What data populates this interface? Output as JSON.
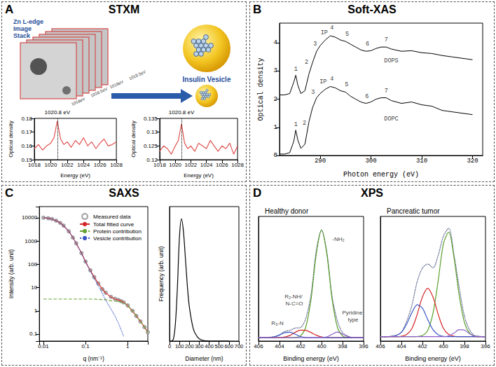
{
  "panels": [
    {
      "letter": "A",
      "title": "STXM",
      "diagram": {
        "stack_label": [
          "Zn L-edge",
          "Image",
          "Stack"
        ],
        "energies": [
          "1018eV",
          "1018.5eV",
          "1019eV",
          "1019.5eV"
        ],
        "vesicle_label": "Insulin Vesicle"
      }
    },
    {
      "letter": "B",
      "title": "Soft-XAS"
    },
    {
      "letter": "C",
      "title": "SAXS"
    },
    {
      "letter": "D",
      "title": "XPS"
    }
  ],
  "chart_data": [
    {
      "panel": "A",
      "type": "line",
      "x": [
        1018,
        1018.5,
        1019,
        1019.5,
        1020,
        1020.4,
        1020.8,
        1021.2,
        1021.6,
        1022,
        1022.5,
        1023,
        1023.5,
        1024,
        1024.5,
        1025,
        1025.5,
        1026,
        1026.5,
        1027,
        1027.5,
        1028
      ],
      "values": [
        0.158,
        0.161,
        0.157,
        0.16,
        0.162,
        0.166,
        0.178,
        0.165,
        0.161,
        0.163,
        0.159,
        0.164,
        0.161,
        0.166,
        0.16,
        0.163,
        0.158,
        0.162,
        0.165,
        0.16,
        0.161,
        0.163
      ],
      "color": "#e0524f",
      "xlabel": "Energy (eV)",
      "ylabel": "Optical density",
      "xlim": [
        1018,
        1028
      ],
      "xticks": [
        1018,
        1020,
        1022,
        1024,
        1026,
        1028
      ],
      "ylim": [
        0.15,
        0.18
      ],
      "yticks": [
        0.15,
        0.16,
        0.17,
        0.18
      ],
      "grid": false,
      "annotations": [
        {
          "text": "1020.8 eV",
          "x": 1020.8
        }
      ]
    },
    {
      "panel": "A",
      "type": "line",
      "x": [
        1018,
        1018.5,
        1019,
        1019.5,
        1020,
        1020.4,
        1020.8,
        1021.2,
        1021.6,
        1022,
        1022.5,
        1023,
        1023.5,
        1024,
        1024.5,
        1025,
        1025.5,
        1026,
        1026.5,
        1027,
        1027.5,
        1028
      ],
      "values": [
        0.123,
        0.125,
        0.124,
        0.122,
        0.125,
        0.127,
        0.133,
        0.126,
        0.124,
        0.125,
        0.123,
        0.126,
        0.125,
        0.124,
        0.127,
        0.125,
        0.123,
        0.125,
        0.124,
        0.126,
        0.122,
        0.125
      ],
      "color": "#e0524f",
      "xlabel": "Energy (eV)",
      "ylabel": "Optical density",
      "xlim": [
        1018,
        1028
      ],
      "xticks": [
        1018,
        1020,
        1022,
        1024,
        1026,
        1028
      ],
      "ylim": [
        0.12,
        0.135
      ],
      "yticks": [
        0.12,
        0.125,
        0.13,
        0.135
      ],
      "grid": false,
      "annotations": [
        {
          "text": "1020.8 eV",
          "x": 1020.8
        }
      ]
    },
    {
      "panel": "B",
      "type": "line",
      "x": [
        282,
        283,
        284,
        284.8,
        285.2,
        285.6,
        286.2,
        287,
        287.8,
        288.5,
        289.3,
        290,
        291,
        292,
        293,
        294,
        295,
        296,
        297,
        298,
        299,
        300,
        301,
        302,
        303,
        304,
        306,
        308,
        310,
        312,
        314,
        316,
        318,
        320
      ],
      "series": [
        {
          "color": "#000000",
          "values": [
            2.15,
            2.15,
            2.2,
            2.6,
            2.85,
            2.5,
            2.2,
            2.3,
            2.9,
            3.3,
            3.7,
            3.9,
            4.1,
            4.25,
            4.2,
            4.1,
            4.05,
            3.95,
            3.85,
            3.75,
            3.7,
            3.72,
            3.8,
            3.85,
            3.85,
            3.78,
            3.7,
            3.72,
            3.65,
            3.62,
            3.55,
            3.5,
            3.45,
            3.4
          ]
        },
        {
          "color": "#000000",
          "values": [
            0.05,
            0.05,
            0.1,
            0.5,
            0.9,
            0.55,
            0.25,
            0.4,
            1.2,
            1.7,
            2.05,
            2.2,
            2.35,
            2.45,
            2.4,
            2.3,
            2.25,
            2.1,
            2.0,
            1.9,
            1.85,
            1.9,
            2.0,
            2.05,
            2.05,
            1.95,
            1.85,
            1.9,
            1.8,
            1.75,
            1.6,
            1.55,
            1.5,
            1.45
          ]
        }
      ],
      "xlabel": "Photon energy (eV)",
      "ylabel": "Optical density",
      "xlim": [
        282,
        322
      ],
      "xticks": [
        290,
        300,
        310,
        320
      ],
      "ylim": [
        0,
        4.7
      ],
      "yticks": [
        0,
        1,
        2,
        3,
        4
      ],
      "grid": false,
      "annotations": [
        {
          "text": "1",
          "x": 285.2,
          "y": 3.05
        },
        {
          "text": "2",
          "x": 287.3,
          "y": 3.3
        },
        {
          "text": "3",
          "x": 289,
          "y": 3.95
        },
        {
          "text": "IP",
          "x": 290.8,
          "y": 4.35
        },
        {
          "text": "4",
          "x": 292.3,
          "y": 4.52
        },
        {
          "text": "5",
          "x": 295.3,
          "y": 4.3
        },
        {
          "text": "6",
          "x": 299.3,
          "y": 3.95
        },
        {
          "text": "7",
          "x": 303,
          "y": 4.1
        },
        {
          "text": "1",
          "x": 285.2,
          "y": 1.1
        },
        {
          "text": "2",
          "x": 286.9,
          "y": 1.15
        },
        {
          "text": "3",
          "x": 288.6,
          "y": 2.25
        },
        {
          "text": "IP",
          "x": 290.6,
          "y": 2.6
        },
        {
          "text": "4",
          "x": 292.3,
          "y": 2.7
        },
        {
          "text": "5",
          "x": 295.2,
          "y": 2.5
        },
        {
          "text": "6",
          "x": 299.2,
          "y": 2.1
        },
        {
          "text": "7",
          "x": 303,
          "y": 2.3
        },
        {
          "text": "DOPS",
          "x": 304,
          "y": 3.35
        },
        {
          "text": "DOPC",
          "x": 304,
          "y": 1.3
        }
      ]
    },
    {
      "panel": "C",
      "type": "line",
      "log": true,
      "x": [
        0.01,
        0.013,
        0.016,
        0.02,
        0.025,
        0.03,
        0.04,
        0.05,
        0.06,
        0.08,
        0.1,
        0.13,
        0.16,
        0.2,
        0.25,
        0.3,
        0.4,
        0.5,
        0.6,
        0.7,
        0.8,
        1,
        1.3,
        1.6,
        2,
        2.5,
        3
      ],
      "series": [
        {
          "name": "Measured data",
          "type": "scatter",
          "marker": "circle",
          "color": "#8a8a8a",
          "values": [
            10000,
            9500,
            8800,
            7500,
            6000,
            4600,
            2600,
            1400,
            800,
            300,
            130,
            55,
            28,
            15,
            8.5,
            6,
            4,
            3.3,
            2.9,
            2.6,
            2.3,
            1.7,
            1.0,
            0.6,
            0.35,
            0.2,
            0.12
          ]
        },
        {
          "name": "Total fitted curve",
          "color": "#d62728",
          "line_style": "solid",
          "values": [
            10100,
            9450,
            8750,
            7450,
            6050,
            4550,
            2620,
            1420,
            790,
            305,
            128,
            54,
            28.5,
            15.2,
            8.6,
            5.9,
            3.9,
            3.2,
            2.95,
            2.65,
            2.3,
            1.7,
            0.98,
            0.6,
            0.35,
            0.2,
            0.12
          ]
        },
        {
          "name": "Protein contribution",
          "color": "#6aa335",
          "line_style": "dashed",
          "values": [
            3.2,
            3.2,
            3.2,
            3.2,
            3.2,
            3.2,
            3.2,
            3.2,
            3.2,
            3.2,
            3.2,
            3.2,
            3.2,
            3.1,
            3.0,
            3.0,
            2.7,
            2.6,
            2.5,
            2.4,
            2.2,
            1.7,
            1.0,
            0.6,
            0.35,
            0.2,
            0.12
          ]
        },
        {
          "name": "Vesicle contribution",
          "color": "#3a56c5",
          "line_style": "dotted",
          "values": [
            10000,
            9450,
            8750,
            7450,
            6050,
            4550,
            2620,
            1420,
            790,
            300,
            125,
            51,
            25,
            12,
            5.6,
            2.9,
            1.2,
            0.6,
            0.3,
            0.15,
            0.08,
            null,
            null,
            null,
            null,
            null,
            null
          ]
        }
      ],
      "xlabel": "q (nm⁻¹)",
      "ylabel": "Intensity (arb. unit)",
      "xlim": [
        0.008,
        3
      ],
      "xticks": [
        0.01,
        0.1,
        1
      ],
      "ylim": [
        0.05,
        30000
      ],
      "yticks": [
        0.1,
        1,
        10,
        100,
        1000,
        10000
      ],
      "legend": "top-right",
      "grid": false
    },
    {
      "panel": "C",
      "type": "line",
      "x": [
        0,
        20,
        40,
        60,
        80,
        100,
        120,
        140,
        160,
        180,
        200,
        240,
        280,
        320,
        400,
        500,
        600
      ],
      "values": [
        0,
        0,
        0.02,
        0.15,
        0.45,
        0.85,
        1.0,
        0.9,
        0.68,
        0.45,
        0.28,
        0.1,
        0.035,
        0.01,
        0,
        0,
        0
      ],
      "color": "#000000",
      "xlabel": "Diameter (nm)",
      "ylabel": "Frequency (arb. unit)",
      "xlim": [
        0,
        700
      ],
      "xticks": [
        0,
        100,
        200,
        300,
        400,
        500,
        600,
        700
      ],
      "ylim": [
        0,
        1.1
      ],
      "tick_labels": "x",
      "grid": false
    },
    {
      "panel": "D",
      "type": "line",
      "title": "Healthy donor",
      "x": [
        406,
        405.5,
        405,
        404.5,
        404,
        403.5,
        403,
        402.5,
        402,
        401.5,
        401,
        400.5,
        400,
        399.5,
        399,
        398.5,
        398,
        397.5,
        397,
        396.5,
        396
      ],
      "series": [
        {
          "color": "#1f2a60",
          "line_style": "dotted",
          "values": [
            0.035,
            0.028,
            0.033,
            0.04,
            0.052,
            0.085,
            0.095,
            0.115,
            0.12,
            0.2,
            0.41,
            0.8,
            0.98,
            0.785,
            0.395,
            0.18,
            0.074,
            0.045,
            0.03,
            0.033,
            0.028
          ]
        },
        {
          "color": "#5aa02c",
          "values": [
            0.03,
            0.03,
            0.03,
            0.03,
            0.03,
            0.03,
            0.03,
            0.032,
            0.046,
            0.125,
            0.37,
            0.77,
            0.98,
            0.77,
            0.37,
            0.125,
            0.046,
            0.032,
            0.03,
            0.03,
            0.03
          ]
        },
        {
          "color": "#d62728",
          "values": [
            0.03,
            0.03,
            0.03,
            0.03,
            0.031,
            0.036,
            0.05,
            0.078,
            0.097,
            0.095,
            0.075,
            0.052,
            0.037,
            0.031,
            0.03,
            0.03,
            0.03,
            0.03,
            0.03,
            0.03,
            0.03
          ]
        },
        {
          "color": "#3a56c5",
          "values": [
            0.03,
            0.03,
            0.031,
            0.037,
            0.055,
            0.075,
            0.078,
            0.06,
            0.04,
            0.032,
            0.03,
            0.03,
            0.03,
            0.03,
            0.03,
            0.03,
            0.03,
            0.03,
            0.03,
            0.03,
            0.03
          ]
        },
        {
          "color": "#8a5cc7",
          "values": [
            0.03,
            0.03,
            0.03,
            0.03,
            0.03,
            0.03,
            0.03,
            0.03,
            0.03,
            0.03,
            0.03,
            0.03,
            0.031,
            0.037,
            0.06,
            0.08,
            0.062,
            0.04,
            0.032,
            0.03,
            0.03
          ]
        }
      ],
      "xlabel": "Binding energy (eV)",
      "xlim": [
        406,
        396
      ],
      "xticks": [
        406,
        404,
        402,
        400,
        398,
        396
      ],
      "ylim": [
        0,
        1.1
      ],
      "tick_labels": "x",
      "grid": false,
      "annotations": [
        {
          "text": "R₃-N",
          "x": 404.2,
          "y": 0.16
        },
        {
          "text": "R₂-NH/ N-C=O",
          "x": 402.6,
          "y": 0.36
        },
        {
          "text": "-NH₂",
          "x": 398.4,
          "y": 0.9
        },
        {
          "text": "Pyridine type",
          "x": 397.0,
          "y": 0.22
        }
      ]
    },
    {
      "panel": "D",
      "type": "line",
      "title": "Pancreatic tumor",
      "x": [
        406,
        405.5,
        405,
        404.5,
        404,
        403.5,
        403,
        402.5,
        402,
        401.5,
        401,
        400.5,
        400,
        399.5,
        399,
        398.5,
        398,
        397.5,
        397,
        396.5,
        396
      ],
      "series": [
        {
          "color": "#1f2a60",
          "line_style": "dotted",
          "values": [
            0.032,
            0.028,
            0.034,
            0.04,
            0.06,
            0.135,
            0.245,
            0.405,
            0.498,
            0.525,
            0.5,
            0.585,
            0.715,
            0.77,
            0.59,
            0.365,
            0.168,
            0.075,
            0.036,
            0.032,
            0.028
          ]
        },
        {
          "color": "#5aa02c",
          "values": [
            0.03,
            0.03,
            0.03,
            0.03,
            0.03,
            0.03,
            0.03,
            0.031,
            0.038,
            0.073,
            0.188,
            0.412,
            0.664,
            0.743,
            0.57,
            0.311,
            0.127,
            0.053,
            0.034,
            0.03,
            0.03
          ]
        },
        {
          "color": "#d62728",
          "values": [
            0.03,
            0.03,
            0.03,
            0.03,
            0.033,
            0.045,
            0.086,
            0.182,
            0.301,
            0.36,
            0.301,
            0.182,
            0.086,
            0.045,
            0.033,
            0.03,
            0.03,
            0.03,
            0.03,
            0.03,
            0.03
          ]
        },
        {
          "color": "#3a56c5",
          "values": [
            0.03,
            0.03,
            0.031,
            0.037,
            0.06,
            0.116,
            0.195,
            0.248,
            0.224,
            0.147,
            0.078,
            0.043,
            0.032,
            0.03,
            0.03,
            0.03,
            0.03,
            0.03,
            0.03,
            0.03,
            0.03
          ]
        },
        {
          "color": "#8a5cc7",
          "values": [
            0.03,
            0.03,
            0.03,
            0.03,
            0.03,
            0.03,
            0.03,
            0.03,
            0.03,
            0.03,
            0.03,
            0.03,
            0.03,
            0.036,
            0.054,
            0.078,
            0.075,
            0.049,
            0.034,
            0.03,
            0.03
          ]
        }
      ],
      "xlabel": "Binding energy (eV)",
      "xlim": [
        406,
        396
      ],
      "xticks": [
        406,
        404,
        402,
        400,
        398,
        396
      ],
      "ylim": [
        0,
        0.85
      ],
      "tick_labels": "x",
      "grid": false
    }
  ]
}
